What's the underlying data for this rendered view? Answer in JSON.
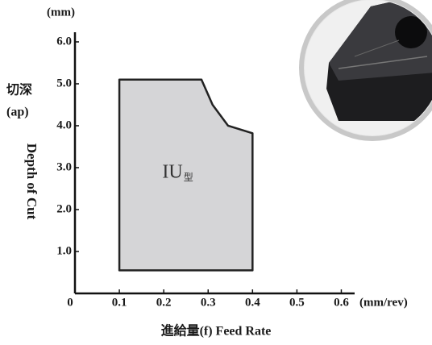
{
  "chart_data": {
    "type": "area",
    "x": [
      0.1,
      0.1,
      0.285,
      0.31,
      0.345,
      0.4,
      0.4,
      0.11
    ],
    "y": [
      0.55,
      5.1,
      5.1,
      4.5,
      4.0,
      3.82,
      0.55,
      0.55
    ],
    "color": "#d5d5d7",
    "region_label": "IU",
    "region_label_sub": "型",
    "xlim": [
      0,
      0.63
    ],
    "ylim": [
      0,
      6.23
    ],
    "xticks": [
      0,
      0.1,
      0.2,
      0.3,
      0.4,
      0.5,
      0.6
    ],
    "yticks": [
      {
        "value": 1,
        "label": "1.0"
      },
      {
        "value": 2,
        "label": "2.0"
      },
      {
        "value": 3,
        "label": "3.0"
      },
      {
        "value": 4,
        "label": "4.0"
      },
      {
        "value": 5,
        "label": "5.0"
      },
      {
        "value": 6,
        "label": "6.0"
      }
    ],
    "x_label": "進給量(f) Feed Rate",
    "x_unit": "(mm/rev)",
    "y_unit": "(mm)",
    "y_label_jp": "切深",
    "y_label_symbol": "(ap)",
    "y_label": "Depth of Cut"
  }
}
